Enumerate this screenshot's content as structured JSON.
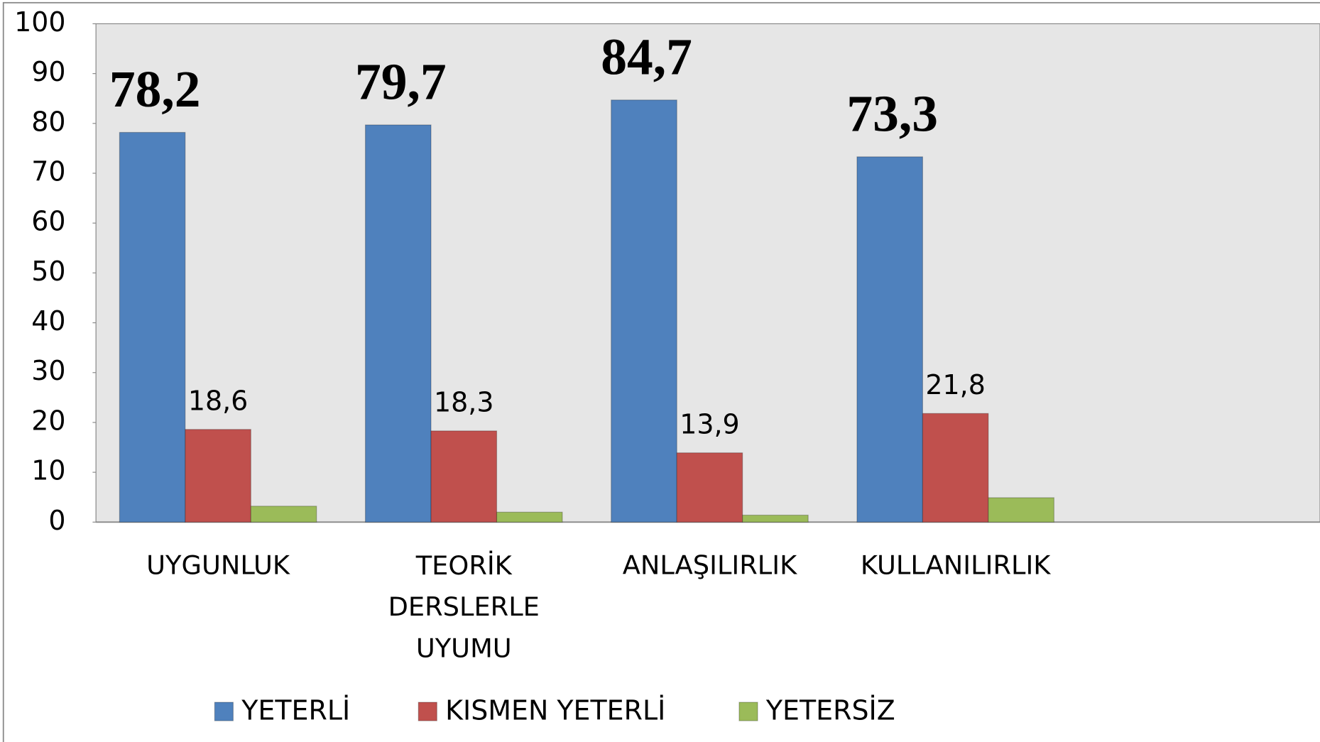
{
  "chart_data": {
    "type": "bar",
    "categories": [
      "UYGUNLUK",
      "TEORİK DERSLERLE UYUMU",
      "ANLAŞILIRLIK",
      "KULLANILIRLIK"
    ],
    "series": [
      {
        "name": "YETERLİ",
        "color": "#4f81bd",
        "values": [
          78.2,
          79.7,
          84.7,
          73.3
        ],
        "value_labels": [
          "78,2",
          "79,7",
          "84,7",
          "73,3"
        ]
      },
      {
        "name": "KISMEN YETERLİ",
        "color": "#c0504d",
        "values": [
          18.6,
          18.3,
          13.9,
          21.8
        ],
        "value_labels": [
          "18,6",
          "18,3",
          "13,9",
          "21,8"
        ]
      },
      {
        "name": "YETERSİZ",
        "color": "#9bbb59",
        "values": [
          3.2,
          2.0,
          1.4,
          4.9
        ]
      }
    ],
    "ylim": [
      0,
      100
    ],
    "yticks": [
      0,
      10,
      20,
      30,
      40,
      50,
      60,
      70,
      80,
      90,
      100
    ],
    "legend": "bottom"
  }
}
